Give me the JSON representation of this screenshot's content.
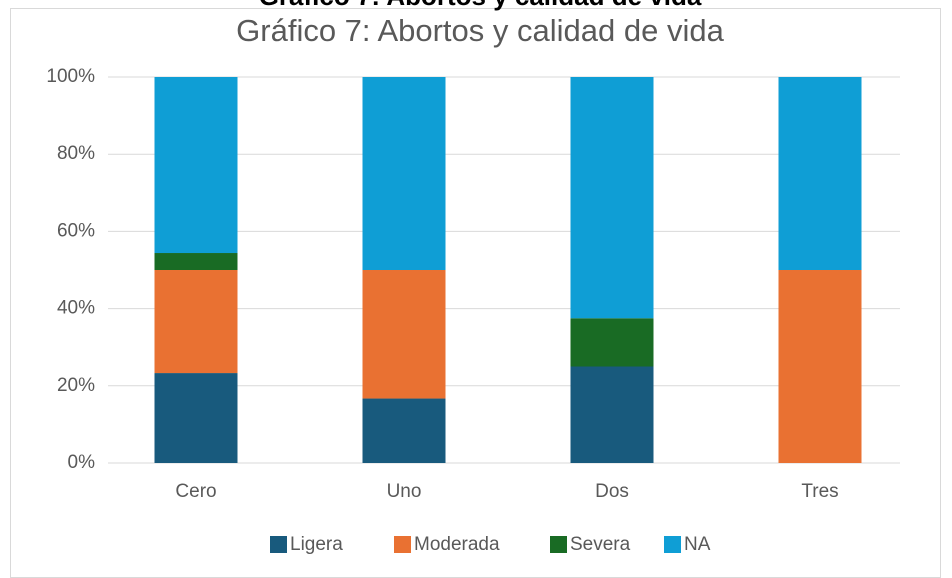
{
  "caption": "Gráfico 7: Abortos y calidad de vida",
  "chart_data": {
    "type": "stacked_bar",
    "title": "Gráfico 7: Abortos y calidad de vida",
    "categories": [
      "Cero",
      "Uno",
      "Dos",
      "Tres"
    ],
    "series": [
      {
        "name": "Ligera",
        "color": "#185a7d",
        "values": [
          23.3,
          16.7,
          25,
          0
        ]
      },
      {
        "name": "Moderada",
        "color": "#e97132",
        "values": [
          26.7,
          33.3,
          0,
          50
        ]
      },
      {
        "name": "Severa",
        "color": "#196b24",
        "values": [
          4.4,
          0,
          12.5,
          0
        ]
      },
      {
        "name": "NA",
        "color": "#0f9ed5",
        "values": [
          45.6,
          50,
          62.5,
          50
        ]
      }
    ],
    "ylim": [
      0,
      100
    ],
    "yticks": [
      {
        "value": 0,
        "label": "0%"
      },
      {
        "value": 20,
        "label": "20%"
      },
      {
        "value": 40,
        "label": "40%"
      },
      {
        "value": 60,
        "label": "60%"
      },
      {
        "value": 80,
        "label": "80%"
      },
      {
        "value": 100,
        "label": "100%"
      }
    ],
    "grid": true,
    "legend": "bottom"
  }
}
